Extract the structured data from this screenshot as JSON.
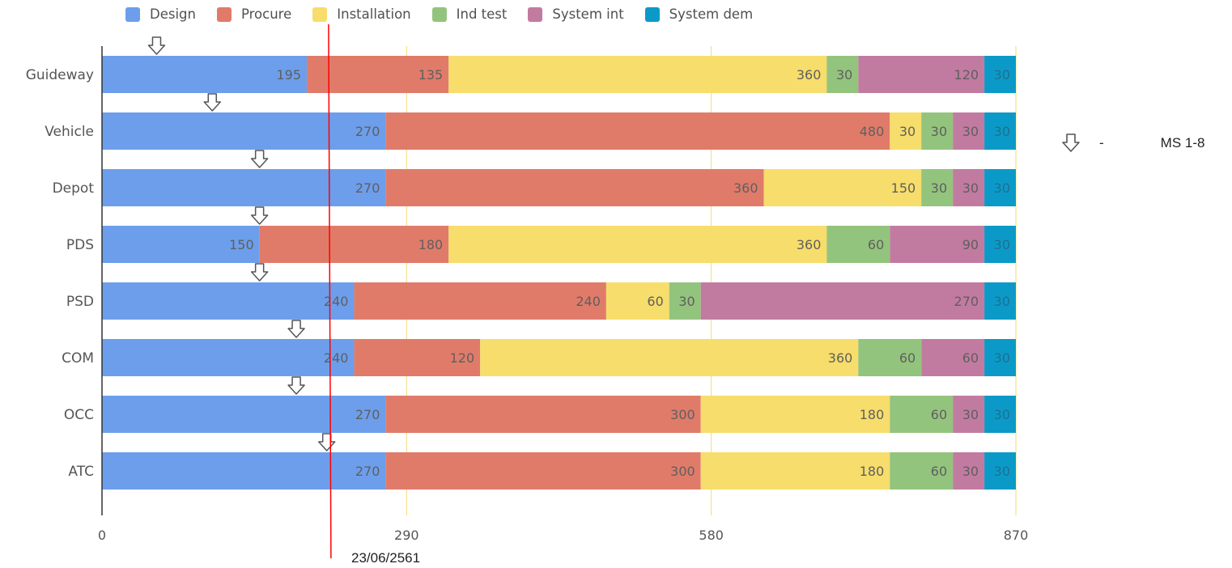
{
  "chart_data": {
    "type": "bar",
    "orientation": "horizontal",
    "stacked": true,
    "categories": [
      "Guideway",
      "Vehicle",
      "Depot",
      "PDS",
      "PSD",
      "COM",
      "OCC",
      "ATC"
    ],
    "series": [
      {
        "name": "Design",
        "color": "#6d9eeb",
        "values": [
          195,
          270,
          270,
          150,
          240,
          240,
          270,
          270
        ]
      },
      {
        "name": "Procure",
        "color": "#e07b6a",
        "values": [
          135,
          480,
          360,
          180,
          240,
          120,
          300,
          300
        ]
      },
      {
        "name": "Installation",
        "color": "#f7dd6b",
        "values": [
          360,
          30,
          150,
          360,
          60,
          360,
          180,
          180
        ]
      },
      {
        "name": "Ind test",
        "color": "#93c47d",
        "values": [
          30,
          30,
          30,
          60,
          30,
          60,
          60,
          60
        ]
      },
      {
        "name": "System int",
        "color": "#c27ba0",
        "values": [
          120,
          30,
          30,
          90,
          270,
          60,
          30,
          30
        ]
      },
      {
        "name": "System dem",
        "color": "#0b9ac8",
        "values": [
          30,
          30,
          30,
          30,
          30,
          30,
          30,
          30
        ]
      }
    ],
    "xlim": [
      0,
      870
    ],
    "xticks": [
      "0",
      "290",
      "580",
      "870"
    ],
    "grid": true,
    "legend_position": "top",
    "milestone_markers": [
      52,
      105,
      150,
      150,
      150,
      185,
      185,
      214
    ],
    "milestone_legend": {
      "dash": "-",
      "label": "MS 1-8"
    },
    "vertical_marker": {
      "value": 218,
      "label": "23/06/2561",
      "color": "#ff0000"
    }
  }
}
